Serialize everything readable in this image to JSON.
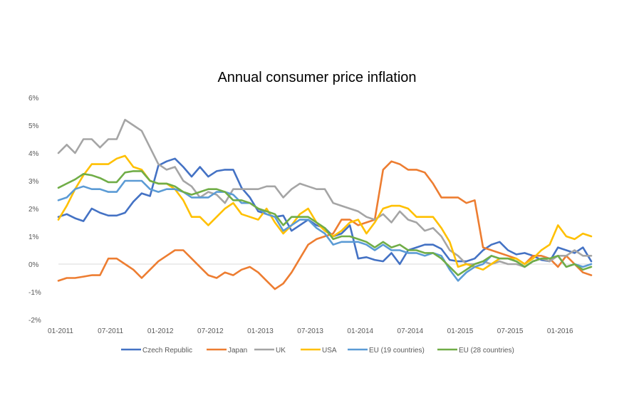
{
  "chart_data": {
    "type": "line",
    "title": "Annual consumer price inflation",
    "xlabel": "",
    "ylabel": "",
    "ylim": [
      -2,
      6
    ],
    "yticks": [
      {
        "value": -2,
        "label": "-2%"
      },
      {
        "value": -1,
        "label": "-1%"
      },
      {
        "value": 0,
        "label": "0%"
      },
      {
        "value": 1,
        "label": "1%"
      },
      {
        "value": 2,
        "label": "2%"
      },
      {
        "value": 3,
        "label": "3%"
      },
      {
        "value": 4,
        "label": "4%"
      },
      {
        "value": 5,
        "label": "5%"
      },
      {
        "value": 6,
        "label": "6%"
      }
    ],
    "xticks": [
      {
        "index": 0,
        "label": "01-2011"
      },
      {
        "index": 6,
        "label": "07-2011"
      },
      {
        "index": 12,
        "label": "01-2012"
      },
      {
        "index": 18,
        "label": "07-2012"
      },
      {
        "index": 24,
        "label": "01-2013"
      },
      {
        "index": 30,
        "label": "07-2013"
      },
      {
        "index": 36,
        "label": "01-2014"
      },
      {
        "index": 42,
        "label": "07-2014"
      },
      {
        "index": 48,
        "label": "01-2015"
      },
      {
        "index": 54,
        "label": "07-2015"
      },
      {
        "index": 60,
        "label": "01-2016"
      }
    ],
    "x_start": "01-2011",
    "x_end": "08-2016",
    "grid": false,
    "legend_position": "bottom",
    "series": [
      {
        "name": "Czech Republic",
        "color": "#4472C4",
        "values": [
          1.7,
          1.8,
          1.65,
          1.55,
          2.0,
          1.85,
          1.75,
          1.75,
          1.85,
          2.25,
          2.55,
          2.45,
          3.55,
          3.7,
          3.8,
          3.5,
          3.15,
          3.5,
          3.15,
          3.35,
          3.4,
          3.4,
          2.75,
          2.4,
          1.9,
          1.8,
          1.7,
          1.75,
          1.2,
          1.4,
          1.6,
          1.4,
          1.3,
          1.0,
          1.1,
          1.4,
          0.2,
          0.25,
          0.15,
          0.1,
          0.4,
          0.0,
          0.5,
          0.6,
          0.7,
          0.7,
          0.55,
          0.15,
          0.1,
          0.1,
          0.2,
          0.5,
          0.7,
          0.8,
          0.5,
          0.35,
          0.4,
          0.3,
          0.15,
          0.1,
          0.6,
          0.5,
          0.4,
          0.6,
          0.1
        ]
      },
      {
        "name": "Japan",
        "color": "#ED7D31",
        "values": [
          -0.6,
          -0.5,
          -0.5,
          -0.45,
          -0.4,
          -0.4,
          0.2,
          0.2,
          0.0,
          -0.2,
          -0.5,
          -0.2,
          0.1,
          0.3,
          0.5,
          0.5,
          0.2,
          -0.1,
          -0.4,
          -0.5,
          -0.3,
          -0.4,
          -0.2,
          -0.1,
          -0.3,
          -0.6,
          -0.9,
          -0.7,
          -0.3,
          0.2,
          0.7,
          0.9,
          1.0,
          1.1,
          1.6,
          1.6,
          1.4,
          1.5,
          1.6,
          3.4,
          3.7,
          3.6,
          3.4,
          3.4,
          3.3,
          2.9,
          2.4,
          2.4,
          2.4,
          2.2,
          2.3,
          0.6,
          0.5,
          0.4,
          0.3,
          0.2,
          0.0,
          0.3,
          0.3,
          0.2,
          -0.1,
          0.3,
          0.0,
          -0.3,
          -0.4
        ]
      },
      {
        "name": "UK",
        "color": "#A5A5A5",
        "values": [
          4.0,
          4.3,
          4.0,
          4.5,
          4.5,
          4.2,
          4.5,
          4.5,
          5.2,
          5.0,
          4.8,
          4.2,
          3.6,
          3.4,
          3.5,
          3.0,
          2.8,
          2.4,
          2.6,
          2.5,
          2.2,
          2.7,
          2.7,
          2.7,
          2.7,
          2.8,
          2.8,
          2.4,
          2.7,
          2.9,
          2.8,
          2.7,
          2.7,
          2.2,
          2.1,
          2.0,
          1.9,
          1.7,
          1.6,
          1.8,
          1.5,
          1.9,
          1.6,
          1.5,
          1.2,
          1.3,
          1.0,
          0.5,
          0.3,
          0.0,
          0.0,
          0.1,
          0.0,
          0.1,
          0.0,
          0.0,
          -0.1,
          0.1,
          0.2,
          0.1,
          0.3,
          0.3,
          0.5,
          0.3,
          0.3
        ]
      },
      {
        "name": "USA",
        "color": "#FFC000",
        "values": [
          1.6,
          2.1,
          2.7,
          3.2,
          3.6,
          3.6,
          3.6,
          3.8,
          3.9,
          3.5,
          3.4,
          3.0,
          2.9,
          2.9,
          2.7,
          2.3,
          1.7,
          1.7,
          1.4,
          1.7,
          2.0,
          2.2,
          1.8,
          1.7,
          1.6,
          2.0,
          1.5,
          1.1,
          1.4,
          1.8,
          2.0,
          1.5,
          1.2,
          1.0,
          1.2,
          1.5,
          1.6,
          1.1,
          1.5,
          2.0,
          2.1,
          2.1,
          2.0,
          1.7,
          1.7,
          1.7,
          1.3,
          0.8,
          -0.1,
          0.0,
          -0.1,
          -0.2,
          0.0,
          0.2,
          0.2,
          0.2,
          0.0,
          0.2,
          0.5,
          0.7,
          1.4,
          1.0,
          0.9,
          1.1,
          1.0
        ]
      },
      {
        "name": "EU (19 countries)",
        "color": "#5B9BD5",
        "values": [
          2.3,
          2.4,
          2.7,
          2.8,
          2.7,
          2.7,
          2.6,
          2.6,
          3.0,
          3.0,
          3.0,
          2.7,
          2.6,
          2.7,
          2.7,
          2.6,
          2.4,
          2.4,
          2.4,
          2.6,
          2.6,
          2.5,
          2.2,
          2.2,
          2.0,
          1.8,
          1.7,
          1.2,
          1.4,
          1.6,
          1.6,
          1.3,
          1.1,
          0.7,
          0.8,
          0.8,
          0.8,
          0.7,
          0.5,
          0.7,
          0.5,
          0.5,
          0.4,
          0.4,
          0.3,
          0.4,
          0.3,
          -0.2,
          -0.6,
          -0.3,
          -0.1,
          0.0,
          0.3,
          0.2,
          0.2,
          0.1,
          -0.1,
          0.1,
          0.2,
          0.2,
          0.3,
          -0.1,
          0.0,
          -0.1,
          0.0
        ]
      },
      {
        "name": "EU (28 countries)",
        "color": "#70AD47",
        "values": [
          2.75,
          2.9,
          3.05,
          3.25,
          3.2,
          3.1,
          2.95,
          2.95,
          3.3,
          3.35,
          3.35,
          3.0,
          2.9,
          2.9,
          2.8,
          2.6,
          2.5,
          2.6,
          2.7,
          2.7,
          2.6,
          2.3,
          2.3,
          2.2,
          2.0,
          1.9,
          1.8,
          1.4,
          1.7,
          1.7,
          1.7,
          1.5,
          1.3,
          0.9,
          1.0,
          1.0,
          0.9,
          0.8,
          0.6,
          0.8,
          0.6,
          0.7,
          0.5,
          0.5,
          0.4,
          0.4,
          0.2,
          -0.1,
          -0.4,
          -0.2,
          0.0,
          0.1,
          0.3,
          0.2,
          0.2,
          0.1,
          -0.1,
          0.1,
          0.2,
          0.2,
          0.3,
          -0.1,
          0.0,
          -0.2,
          -0.1
        ]
      }
    ]
  }
}
